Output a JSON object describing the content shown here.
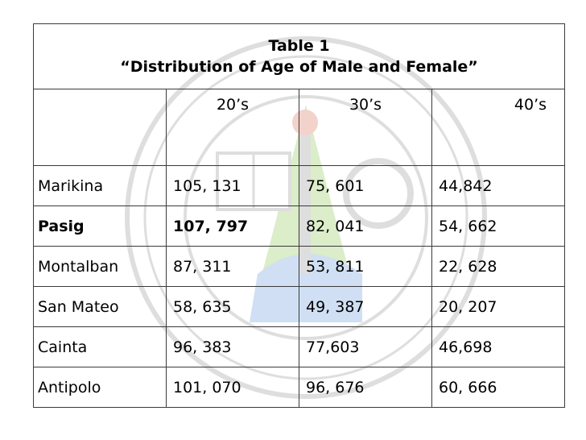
{
  "table": {
    "title": "Table 1",
    "subtitle": "“Distribution of Age of Male and Female”",
    "columns": [
      "",
      "20’s",
      "30’s",
      "40’s"
    ],
    "rows": [
      {
        "city": "Marikina",
        "values": [
          "105, 131",
          "75, 601",
          "44,842"
        ]
      },
      {
        "city": "Pasig",
        "values": [
          "107, 797",
          "82, 041",
          "54, 662"
        ]
      },
      {
        "city": "Montalban",
        "values": [
          "87, 311",
          "53, 811",
          "22, 628"
        ]
      },
      {
        "city": "San Mateo",
        "values": [
          "58, 635",
          "49, 387",
          "20, 207"
        ]
      },
      {
        "city": "Cainta",
        "values": [
          "96, 383",
          "77,603",
          "46,698"
        ]
      },
      {
        "city": "Antipolo",
        "values": [
          "101, 070",
          "96, 676",
          "60, 666"
        ]
      }
    ]
  },
  "colors": {
    "border": "#3a3a3a",
    "watermark_green": "#7fbf3f",
    "watermark_blue": "#5b8fd6",
    "watermark_gray": "#8a8a8a"
  }
}
